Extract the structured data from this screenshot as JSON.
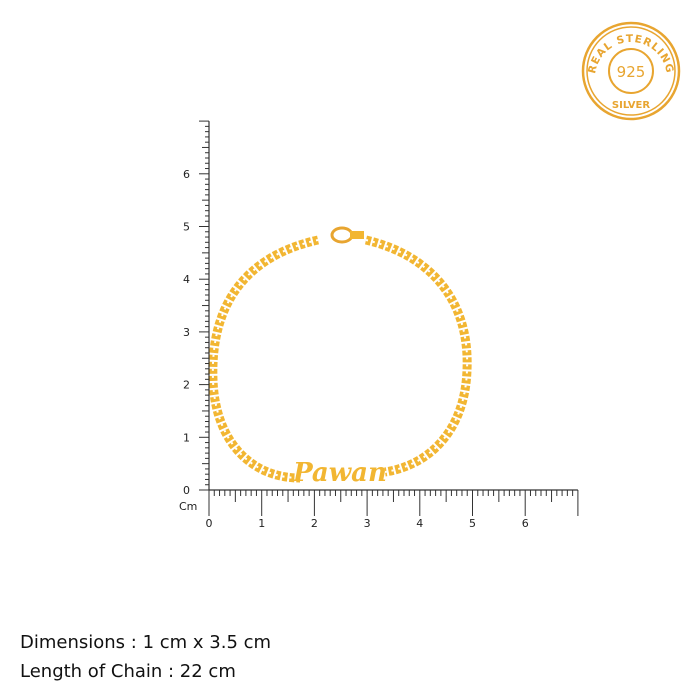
{
  "badge": {
    "top_text": "REAL STERLING",
    "center_text": "925",
    "bottom_text": "SILVER",
    "color": "#E8A530"
  },
  "ruler": {
    "unit_label": "Cm",
    "vertical_ticks": [
      "0",
      "1",
      "2",
      "3",
      "4",
      "5",
      "6"
    ],
    "horizontal_ticks": [
      "0",
      "1",
      "2",
      "3",
      "4",
      "5",
      "6"
    ],
    "max_cm": 7
  },
  "product": {
    "name_text": "Pawan",
    "metal_color": "#F2B632"
  },
  "info": {
    "dimensions": "Dimensions : 1 cm x 3.5 cm",
    "chain_length": "Length of Chain : 22 cm"
  }
}
